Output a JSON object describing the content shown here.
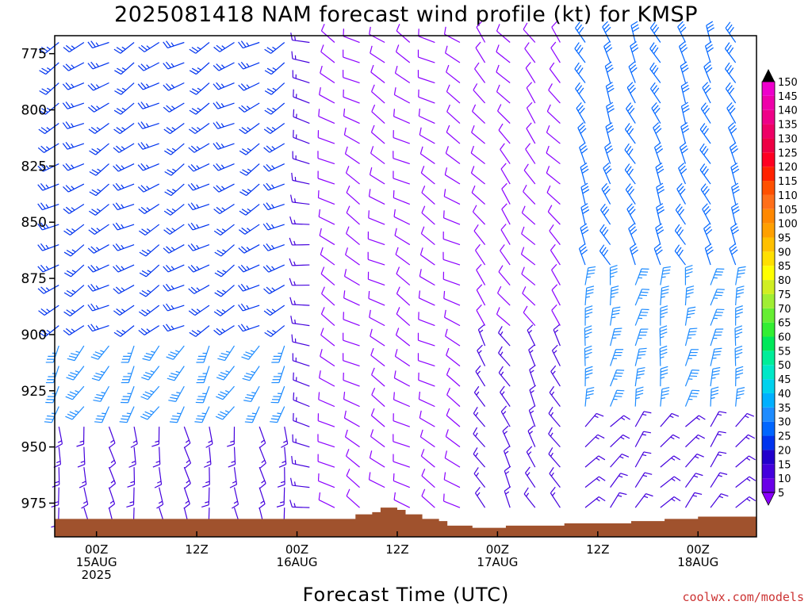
{
  "chart_data": {
    "type": "wind-barb-profile",
    "title": "2025081418 NAM forecast wind profile (kt) for KMSP",
    "xlabel": "Forecast Time (UTC)",
    "ylabel": "",
    "units": "kt",
    "y_axis": {
      "scale": "pressure",
      "ylim": [
        990,
        767
      ],
      "ticks": [
        {
          "value": 775,
          "label": "775"
        },
        {
          "value": 800,
          "label": "800"
        },
        {
          "value": 825,
          "label": "825"
        },
        {
          "value": 850,
          "label": "850"
        },
        {
          "value": 875,
          "label": "875"
        },
        {
          "value": 900,
          "label": "900"
        },
        {
          "value": 925,
          "label": "925"
        },
        {
          "value": 950,
          "label": "950"
        },
        {
          "value": 975,
          "label": "975"
        }
      ]
    },
    "x_axis": {
      "unit": "hours from 2025-08-15 00Z",
      "xlim": [
        -5,
        79
      ],
      "ticks": [
        {
          "value": 0,
          "time": "00Z",
          "date": "15AUG",
          "year": "2025"
        },
        {
          "value": 12,
          "time": "12Z",
          "date": "",
          "year": ""
        },
        {
          "value": 24,
          "time": "00Z",
          "date": "16AUG",
          "year": ""
        },
        {
          "value": 36,
          "time": "12Z",
          "date": "",
          "year": ""
        },
        {
          "value": 48,
          "time": "00Z",
          "date": "17AUG",
          "year": ""
        },
        {
          "value": 60,
          "time": "12Z",
          "date": "",
          "year": ""
        },
        {
          "value": 72,
          "time": "00Z",
          "date": "18AUG",
          "year": ""
        }
      ]
    },
    "colorbar": {
      "levels": [
        5,
        10,
        15,
        20,
        25,
        30,
        35,
        40,
        45,
        50,
        55,
        60,
        65,
        70,
        75,
        80,
        85,
        90,
        95,
        100,
        105,
        110,
        115,
        120,
        125,
        130,
        135,
        140,
        145,
        150
      ],
      "colors": [
        "#8b00ff",
        "#6a00e8",
        "#4400dd",
        "#2200cc",
        "#0033ee",
        "#0066ff",
        "#1e8cff",
        "#00b0ff",
        "#00d2ee",
        "#00e8c8",
        "#00ee99",
        "#00e85a",
        "#33ee33",
        "#66ee33",
        "#a0ee33",
        "#d0ee22",
        "#ffff00",
        "#ffe000",
        "#ffc000",
        "#ffa000",
        "#ff8800",
        "#ff6f1a",
        "#ff5000",
        "#ff2200",
        "#ff0022",
        "#ee0044",
        "#ee0066",
        "#ee0088",
        "#ee00aa",
        "#ee00cc"
      ]
    },
    "terrain": {
      "color": "#a0522d",
      "surface_pressure": [
        [
          -5,
          982
        ],
        [
          30,
          982
        ],
        [
          31,
          980
        ],
        [
          33,
          979
        ],
        [
          34,
          977
        ],
        [
          36,
          978
        ],
        [
          37,
          980
        ],
        [
          39,
          982
        ],
        [
          41,
          983
        ],
        [
          42,
          985
        ],
        [
          45,
          986
        ],
        [
          49,
          985
        ],
        [
          56,
          984
        ],
        [
          64,
          983
        ],
        [
          68,
          982
        ],
        [
          72,
          981
        ],
        [
          79,
          981
        ]
      ]
    },
    "wind_regimes": [
      {
        "t0": -5,
        "t1": 24,
        "p0": 767,
        "p1": 900,
        "speed_kt": 27,
        "dir_deg": 240
      },
      {
        "t0": -5,
        "t1": 24,
        "p0": 900,
        "p1": 935,
        "speed_kt": 35,
        "dir_deg": 210
      },
      {
        "t0": -5,
        "t1": 24,
        "p0": 935,
        "p1": 990,
        "speed_kt": 15,
        "dir_deg": 170
      },
      {
        "t0": 24,
        "t1": 28,
        "p0": 767,
        "p1": 990,
        "speed_kt": 15,
        "dir_deg": 280
      },
      {
        "t0": 28,
        "t1": 45,
        "p0": 767,
        "p1": 990,
        "speed_kt": 8,
        "dir_deg": 300
      },
      {
        "t0": 45,
        "t1": 56,
        "p0": 767,
        "p1": 900,
        "speed_kt": 8,
        "dir_deg": 320
      },
      {
        "t0": 45,
        "t1": 56,
        "p0": 900,
        "p1": 990,
        "speed_kt": 15,
        "dir_deg": 330
      },
      {
        "t0": 56,
        "t1": 79,
        "p0": 767,
        "p1": 870,
        "speed_kt": 30,
        "dir_deg": 335
      },
      {
        "t0": 56,
        "t1": 79,
        "p0": 870,
        "p1": 940,
        "speed_kt": 35,
        "dir_deg": 10
      },
      {
        "t0": 56,
        "t1": 79,
        "p0": 940,
        "p1": 990,
        "speed_kt": 17,
        "dir_deg": 40
      }
    ],
    "credit": "coolwx.com/models"
  }
}
